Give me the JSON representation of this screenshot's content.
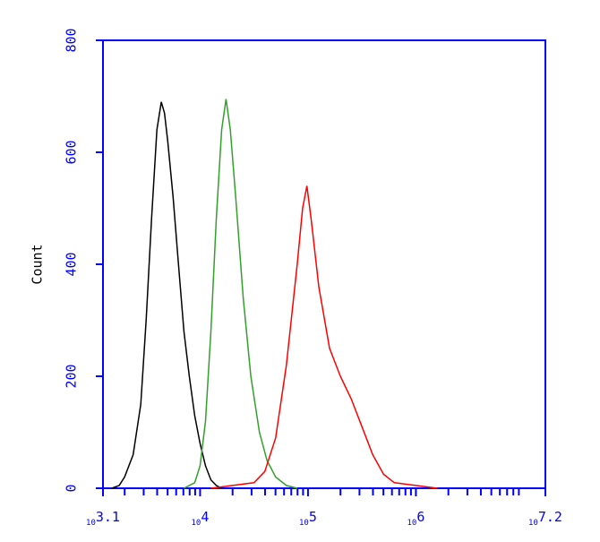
{
  "chart_data": {
    "type": "line",
    "ylabel": "Count",
    "xscale": "log",
    "axis_color": "#0000ff",
    "xlim": [
      1258.9,
      15848932
    ],
    "ylim": [
      0,
      800
    ],
    "xticks": [
      {
        "value": 1258.9,
        "label": "10^3.1"
      },
      {
        "value": 10000,
        "label": "10^4"
      },
      {
        "value": 100000,
        "label": "10^5"
      },
      {
        "value": 1000000,
        "label": "10^6"
      },
      {
        "value": 15848932,
        "label": "10^7.2"
      }
    ],
    "xminorticks": [
      2000,
      3000,
      4000,
      5000,
      6000,
      7000,
      8000,
      9000,
      20000,
      30000,
      40000,
      50000,
      60000,
      70000,
      80000,
      90000,
      200000,
      300000,
      400000,
      500000,
      600000,
      700000,
      800000,
      900000,
      2000000,
      3000000,
      4000000,
      5000000,
      6000000,
      7000000,
      8000000,
      9000000
    ],
    "yticks": [
      0,
      200,
      400,
      600,
      800
    ],
    "series": [
      {
        "color": "#000000",
        "x": [
          1514,
          1778,
          1995,
          2399,
          2818,
          3162,
          3548,
          3981,
          4365,
          4677,
          5012,
          5623,
          6310,
          7079,
          7943,
          8913,
          10000,
          11220,
          12589,
          14125,
          15849
        ],
        "values": [
          0,
          5,
          20,
          60,
          150,
          300,
          480,
          640,
          690,
          670,
          620,
          520,
          400,
          280,
          200,
          130,
          80,
          40,
          15,
          5,
          0
        ]
      },
      {
        "color": "#33a02c",
        "x": [
          7079,
          8913,
          10000,
          11220,
          12589,
          14125,
          15849,
          17378,
          19055,
          21380,
          25119,
          29512,
          35481,
          41687,
          50119,
          63096,
          79433
        ],
        "values": [
          0,
          10,
          40,
          120,
          280,
          480,
          640,
          695,
          640,
          520,
          340,
          200,
          100,
          50,
          20,
          5,
          0
        ]
      },
      {
        "color": "#ff0000",
        "x": [
          12589,
          19953,
          31623,
          39811,
          50119,
          63096,
          79433,
          89125,
          97724,
          107152,
          125893,
          158489,
          199526,
          251189,
          316228,
          398107,
          501187,
          630957,
          1000000,
          1584893
        ],
        "values": [
          0,
          5,
          10,
          30,
          90,
          220,
          400,
          500,
          540,
          480,
          360,
          250,
          200,
          160,
          110,
          60,
          25,
          10,
          5,
          0
        ]
      }
    ]
  }
}
